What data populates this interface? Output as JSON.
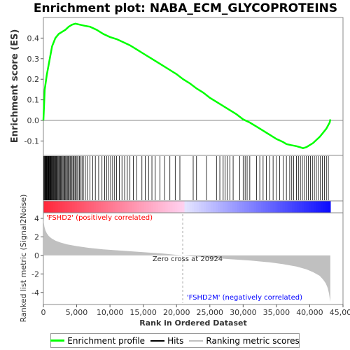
{
  "chart_data": {
    "title": "Enrichment plot: NABA_ECM_GLYCOPROTEINS",
    "xlabel": "Rank in Ordered Dataset",
    "xlim": [
      0,
      45000
    ],
    "xticks": [
      0,
      5000,
      10000,
      15000,
      20000,
      25000,
      30000,
      35000,
      40000,
      45000
    ],
    "xtick_labels": [
      "0",
      "5,000",
      "10,000",
      "15,000",
      "20,000",
      "25,000",
      "30,000",
      "35,000",
      "40,000",
      "45,000"
    ],
    "n_genes": 43100,
    "es_panel": {
      "type": "line",
      "ylabel": "Enrichment score (ES)",
      "ylim": [
        -0.17,
        0.5
      ],
      "yticks": [
        -0.1,
        0.0,
        0.1,
        0.2,
        0.3,
        0.4
      ],
      "ytick_labels": [
        "-0.1",
        "0.0",
        "0.1",
        "0.2",
        "0.3",
        "0.4"
      ],
      "series": [
        {
          "name": "Enrichment profile",
          "color": "#00ff00",
          "x": [
            0,
            200,
            500,
            900,
            1300,
            1800,
            2300,
            2800,
            3300,
            3800,
            4300,
            4800,
            5500,
            6200,
            7000,
            8000,
            9000,
            10000,
            11000,
            12000,
            13000,
            14000,
            15000,
            16000,
            17000,
            18000,
            19000,
            20000,
            21000,
            22000,
            23000,
            24000,
            25000,
            26000,
            27000,
            28000,
            29000,
            30000,
            31000,
            32000,
            33000,
            34000,
            35000,
            36000,
            36500,
            37200,
            38000,
            38500,
            39000,
            39500,
            40000,
            40500,
            41000,
            41500,
            42000,
            42500,
            43000,
            43100
          ],
          "y": [
            0.0,
            0.15,
            0.22,
            0.29,
            0.36,
            0.4,
            0.42,
            0.43,
            0.44,
            0.455,
            0.465,
            0.47,
            0.465,
            0.46,
            0.455,
            0.44,
            0.42,
            0.405,
            0.395,
            0.38,
            0.365,
            0.345,
            0.325,
            0.305,
            0.285,
            0.265,
            0.245,
            0.225,
            0.2,
            0.18,
            0.155,
            0.135,
            0.11,
            0.09,
            0.07,
            0.05,
            0.03,
            0.005,
            -0.01,
            -0.03,
            -0.05,
            -0.07,
            -0.09,
            -0.105,
            -0.115,
            -0.12,
            -0.125,
            -0.13,
            -0.135,
            -0.13,
            -0.12,
            -0.11,
            -0.095,
            -0.08,
            -0.06,
            -0.04,
            -0.01,
            0.005
          ]
        }
      ]
    },
    "hits_panel": {
      "name": "Hits",
      "color": "#000000",
      "positions": [
        60,
        140,
        230,
        300,
        380,
        450,
        520,
        600,
        680,
        750,
        830,
        910,
        990,
        1070,
        1150,
        1240,
        1330,
        1420,
        1510,
        1600,
        1700,
        1800,
        1900,
        2000,
        2100,
        2220,
        2340,
        2460,
        2580,
        2700,
        2820,
        2950,
        3080,
        3210,
        3340,
        3470,
        3600,
        3740,
        3880,
        4020,
        4160,
        4300,
        4450,
        4600,
        4750,
        4900,
        5050,
        5200,
        5400,
        5600,
        5800,
        6000,
        6300,
        6600,
        7000,
        7400,
        7800,
        8300,
        8800,
        9200,
        9500,
        9800,
        10100,
        10400,
        10700,
        11000,
        11400,
        11800,
        12200,
        12600,
        13000,
        13500,
        14000,
        14800,
        15300,
        15800,
        16300,
        16800,
        17500,
        18200,
        19000,
        19800,
        20500,
        22500,
        23000,
        24500,
        26000,
        26500,
        27000,
        27300,
        27600,
        28000,
        28500,
        29500,
        30000,
        30300,
        30600,
        31000,
        32000,
        32500,
        33000,
        33500,
        34000,
        34500,
        35000,
        35500,
        36000,
        36500,
        37000,
        37300,
        37600,
        38000,
        38300,
        38600,
        38900,
        39200,
        39500,
        39800,
        40100,
        40400,
        40700,
        41000,
        41300,
        41600,
        41900,
        42200,
        42500,
        42800
      ]
    },
    "ranking_panel": {
      "name": "Ranking metric scores",
      "ylabel": "Ranked list metric (Signal2Noise)",
      "ylim": [
        -5.3,
        4.6
      ],
      "yticks": [
        -4,
        -2,
        0,
        2,
        4
      ],
      "ytick_labels": [
        "-4",
        "-2",
        "0",
        "2",
        "4"
      ],
      "x": [
        0,
        50,
        150,
        300,
        500,
        800,
        1200,
        1800,
        2500,
        3500,
        5000,
        7000,
        9000,
        12000,
        15000,
        18000,
        20924,
        24000,
        28000,
        31000,
        34000,
        36000,
        38000,
        39500,
        40500,
        41500,
        42000,
        42400,
        42700,
        42900,
        43000,
        43100
      ],
      "y": [
        4.2,
        3.6,
        3.1,
        2.7,
        2.4,
        2.1,
        1.85,
        1.6,
        1.4,
        1.2,
        1.0,
        0.8,
        0.65,
        0.5,
        0.35,
        0.2,
        0.0,
        -0.2,
        -0.4,
        -0.55,
        -0.75,
        -0.95,
        -1.2,
        -1.5,
        -1.8,
        -2.2,
        -2.6,
        -3.0,
        -3.5,
        -4.1,
        -4.6,
        -5.0
      ],
      "fill_color": "#c0c0c0",
      "zero_cross_label": "Zero cross at 20924",
      "zero_cross": 20924,
      "pos_label": "'FSHD2' (positively correlated)",
      "neg_label": "'FSHD2M' (negatively correlated)",
      "pos_color": "#ff0000",
      "neg_color": "#0000ff"
    },
    "legend": {
      "items": [
        {
          "label": "Enrichment profile",
          "color": "#00ff00"
        },
        {
          "label": "Hits",
          "color": "#000000"
        },
        {
          "label": "Ranking metric scores",
          "color": "#c0c0c0"
        }
      ]
    }
  }
}
